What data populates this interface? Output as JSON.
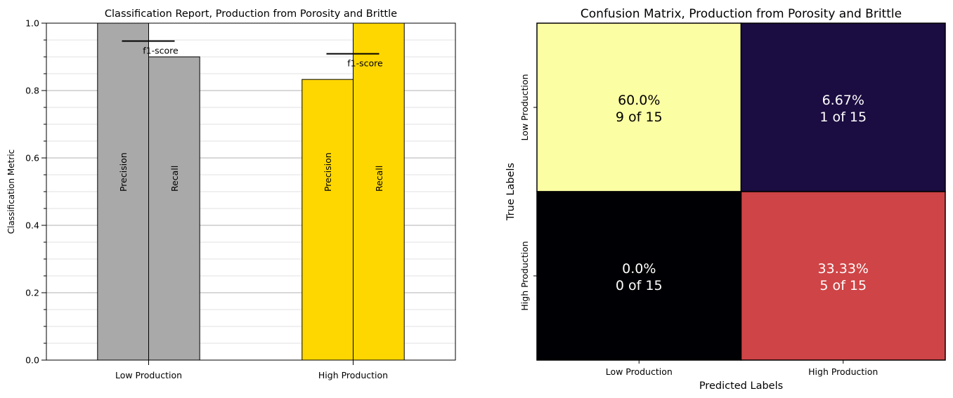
{
  "chart_data": [
    {
      "type": "bar",
      "title": "Classification Report, Production from Porosity and Brittle",
      "xlabel": "",
      "ylabel": "Classification Metric",
      "ylim": [
        0,
        1.0
      ],
      "yticks": [
        "0.0",
        "0.2",
        "0.4",
        "0.6",
        "0.8",
        "1.0"
      ],
      "major_grid_step": 0.2,
      "minor_grid_step": 0.05,
      "categories": [
        "Low Production",
        "High Production"
      ],
      "bar_colors": [
        "#a9a9a9",
        "#ffd700"
      ],
      "series": [
        {
          "name": "Precision",
          "values": [
            1.0,
            0.833
          ]
        },
        {
          "name": "Recall",
          "values": [
            0.9,
            1.0
          ]
        }
      ],
      "f1_score": {
        "label": "f1-score",
        "values": [
          0.947,
          0.909
        ]
      },
      "bar_label_y": 0.5
    },
    {
      "type": "heatmap",
      "title": "Confusion Matrix, Production from Porosity and Brittle",
      "xlabel": "Predicted Labels",
      "ylabel": "True Labels",
      "x_categories": [
        "Low Production",
        "High Production"
      ],
      "y_categories": [
        "Low Production",
        "High Production"
      ],
      "total": 15,
      "cells": [
        [
          {
            "count": 9,
            "percent": "60.0%",
            "text": "9 of 15",
            "color": "#fcfea4",
            "text_color": "#000000"
          },
          {
            "count": 1,
            "percent": "6.67%",
            "text": "1 of 15",
            "color": "#1b0c41",
            "text_color": "#ffffff"
          }
        ],
        [
          {
            "count": 0,
            "percent": "0.0%",
            "text": "0 of 15",
            "color": "#000004",
            "text_color": "#ffffff"
          },
          {
            "count": 5,
            "percent": "33.33%",
            "text": "5 of 15",
            "color": "#cf4446",
            "text_color": "#ffffff"
          }
        ]
      ]
    }
  ]
}
